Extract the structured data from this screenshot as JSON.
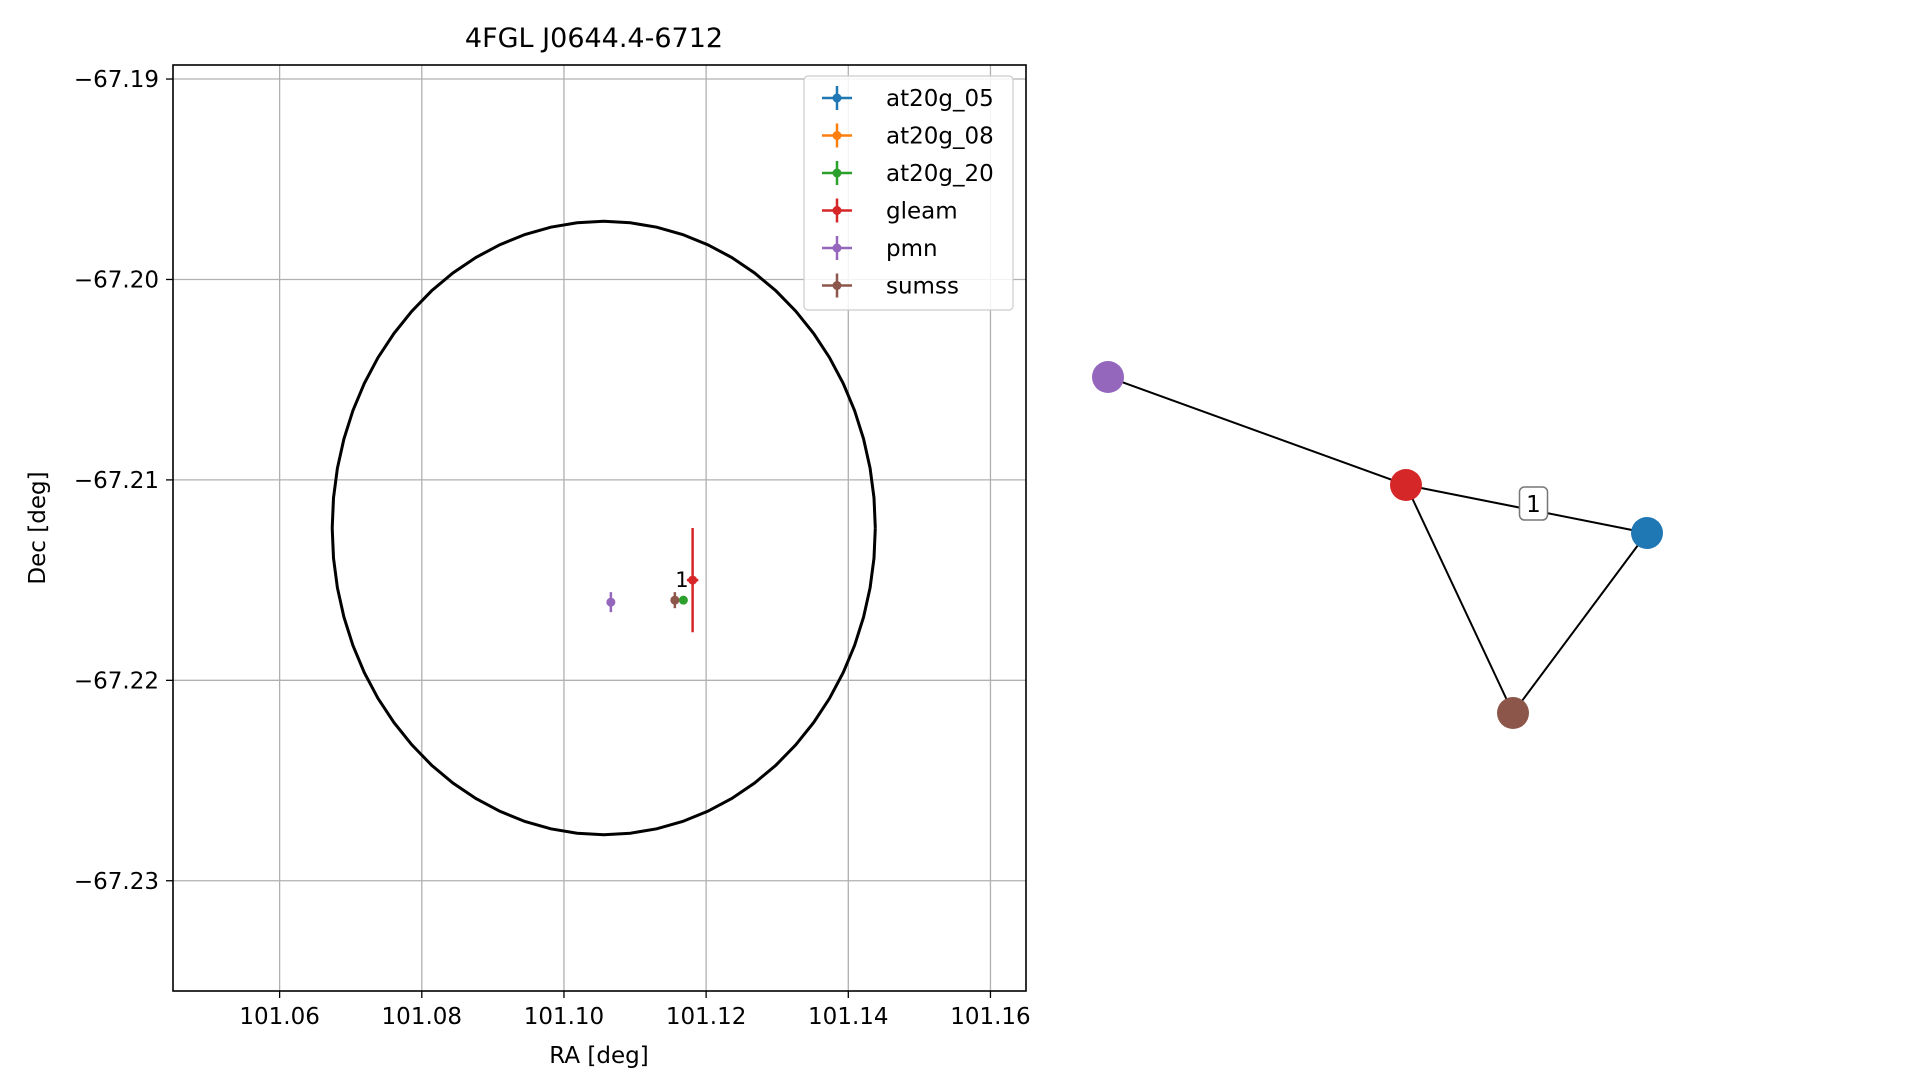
{
  "chart_data": [
    {
      "type": "scatter",
      "title": "4FGL J0644.4-6712",
      "xlabel": "RA [deg]",
      "ylabel": "Dec [deg]",
      "xlim": [
        101.045,
        101.165
      ],
      "ylim": [
        -67.2355,
        -67.1893
      ],
      "xticks": [
        101.06,
        101.08,
        101.1,
        101.12,
        101.14,
        101.16
      ],
      "xtick_labels": [
        "101.06",
        "101.08",
        "101.10",
        "101.12",
        "101.14",
        "101.16"
      ],
      "yticks": [
        -67.19,
        -67.2,
        -67.21,
        -67.22,
        -67.23
      ],
      "ytick_labels": [
        "−67.19",
        "−67.20",
        "−67.21",
        "−67.22",
        "−67.23"
      ],
      "grid": true,
      "legend_position": "upper-right",
      "series": [
        {
          "name": "at20g_05",
          "color": "#1f77b4",
          "points": []
        },
        {
          "name": "at20g_08",
          "color": "#ff7f0e",
          "points": []
        },
        {
          "name": "at20g_20",
          "color": "#2ca02c",
          "points": [
            {
              "x": 101.1168,
              "y": -67.216,
              "xerr": 0.0003,
              "yerr": 0.0001
            }
          ]
        },
        {
          "name": "gleam",
          "color": "#d62728",
          "points": [
            {
              "x": 101.1181,
              "y": -67.215,
              "xerr": 0.0008,
              "yerr": 0.0026
            }
          ]
        },
        {
          "name": "pmn",
          "color": "#9467bd",
          "points": [
            {
              "x": 101.1066,
              "y": -67.2161,
              "xerr": 0.0002,
              "yerr": 0.0005
            }
          ]
        },
        {
          "name": "sumss",
          "color": "#8c564b",
          "points": [
            {
              "x": 101.1156,
              "y": -67.216,
              "xerr": 0.0004,
              "yerr": 0.0004
            }
          ]
        }
      ],
      "ellipse": {
        "center_x": 101.1056,
        "center_y": -67.2124,
        "semi_x": 0.0382,
        "semi_y": 0.0153,
        "color": "#000000"
      },
      "annotations": [
        {
          "text": "1",
          "x": 101.1166,
          "y": -67.215
        }
      ]
    },
    {
      "type": "network",
      "nodes": [
        {
          "id": "pmn",
          "color": "#9467bd"
        },
        {
          "id": "gleam",
          "color": "#d62728"
        },
        {
          "id": "at20g",
          "color": "#1f77b4"
        },
        {
          "id": "sumss",
          "color": "#8c564b"
        }
      ],
      "edges": [
        {
          "source": "pmn",
          "target": "gleam",
          "label": ""
        },
        {
          "source": "gleam",
          "target": "at20g",
          "label": "1"
        },
        {
          "source": "gleam",
          "target": "sumss",
          "label": ""
        },
        {
          "source": "sumss",
          "target": "at20g",
          "label": ""
        }
      ]
    }
  ]
}
